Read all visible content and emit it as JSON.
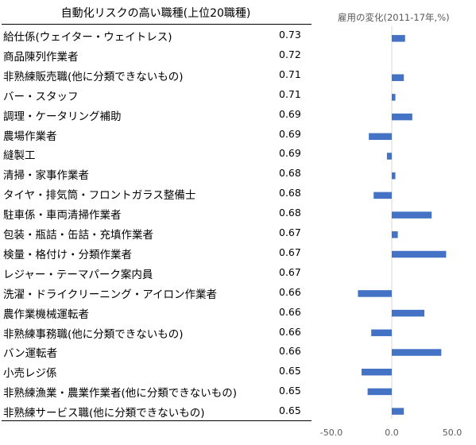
{
  "table": {
    "title": "自動化リスクの高い職種(上位20職種)",
    "rows": [
      {
        "name": "給仕係(ウェイター・ウェイトレス)",
        "risk": "0.73"
      },
      {
        "name": "商品陳列作業者",
        "risk": "0.72"
      },
      {
        "name": "非熟練販売職(他に分類できないもの)",
        "risk": "0.71"
      },
      {
        "name": "バー・スタッフ",
        "risk": "0.71"
      },
      {
        "name": "調理・ケータリング補助",
        "risk": "0.69"
      },
      {
        "name": "農場作業者",
        "risk": "0.69"
      },
      {
        "name": "縫製工",
        "risk": "0.69"
      },
      {
        "name": "清掃・家事作業者",
        "risk": "0.68"
      },
      {
        "name": "タイヤ・排気筒・フロントガラス整備士",
        "risk": "0.68"
      },
      {
        "name": "駐車係・車両清掃作業者",
        "risk": "0.68"
      },
      {
        "name": "包装・瓶詰・缶詰・充填作業者",
        "risk": "0.67"
      },
      {
        "name": "検量・格付け・分類作業者",
        "risk": "0.67"
      },
      {
        "name": "レジャー・テーマパーク案内員",
        "risk": "0.67"
      },
      {
        "name": "洗濯・ドライクリーニング・アイロン作業者",
        "risk": "0.66"
      },
      {
        "name": "農作業機械運転者",
        "risk": "0.66"
      },
      {
        "name": "非熟練事務職(他に分類できないもの)",
        "risk": "0.66"
      },
      {
        "name": "バン運転者",
        "risk": "0.66"
      },
      {
        "name": "小売レジ係",
        "risk": "0.65"
      },
      {
        "name": "非熟練漁業・農業作業者(他に分類できないもの)",
        "risk": "0.65"
      },
      {
        "name": "非熟練サービス職(他に分類できないもの)",
        "risk": "0.65"
      }
    ]
  },
  "chart_data": {
    "type": "bar",
    "orientation": "horizontal",
    "title": "雇用の変化(2011-17年,%)",
    "values": [
      11,
      null,
      10,
      3,
      17,
      -19,
      -4,
      3,
      -15,
      33,
      5,
      45,
      null,
      -28,
      27,
      -17,
      41,
      -25,
      -20,
      10
    ],
    "xlim": [
      -50,
      50
    ],
    "xticks": [
      "-50.0",
      "0.0",
      "50.0"
    ],
    "grid": false,
    "bar_color": "#4472c4",
    "axis_color": "#d9d9d9"
  }
}
